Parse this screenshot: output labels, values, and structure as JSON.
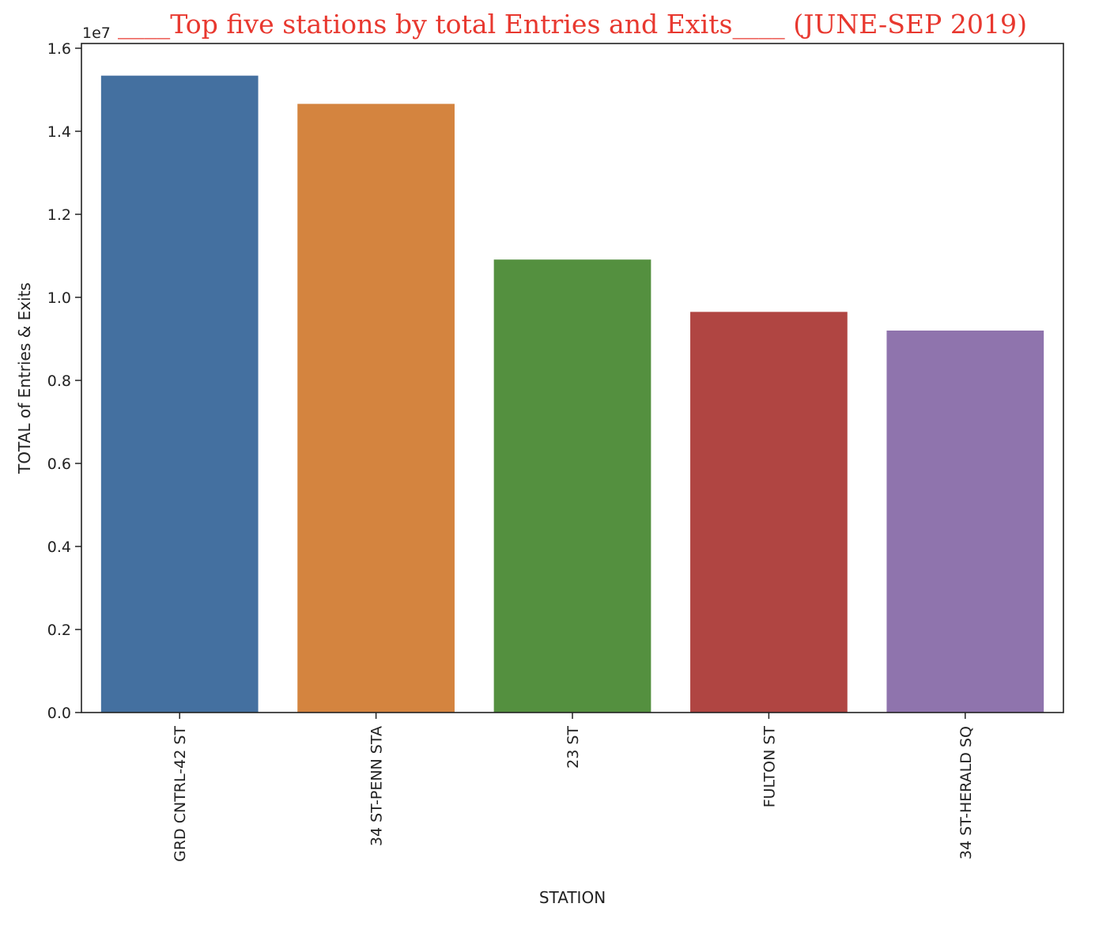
{
  "chart_data": {
    "type": "bar",
    "title": "____Top five stations by total Entries and Exits____ (JUNE-SEP 2019)",
    "title_color": "#e8382f",
    "xlabel": "STATION",
    "ylabel": "TOTAL of Entries & Exits",
    "y_offset_label": "1e7",
    "categories": [
      "GRD CNTRL-42 ST",
      "34 ST-PENN STA",
      "23 ST",
      "FULTON ST",
      "34 ST-HERALD SQ"
    ],
    "values": [
      15340000,
      14660000,
      10910000,
      9650000,
      9200000
    ],
    "colors": [
      "#4470a0",
      "#d4843f",
      "#54903f",
      "#b04542",
      "#8f74ad"
    ],
    "ylim": [
      0,
      16000000
    ],
    "yticks": [
      0,
      2000000,
      4000000,
      6000000,
      8000000,
      10000000,
      12000000,
      14000000,
      16000000
    ],
    "ytick_labels": [
      "0.0",
      "0.2",
      "0.4",
      "0.6",
      "0.8",
      "1.0",
      "1.2",
      "1.4",
      "1.6"
    ],
    "grid": false
  }
}
